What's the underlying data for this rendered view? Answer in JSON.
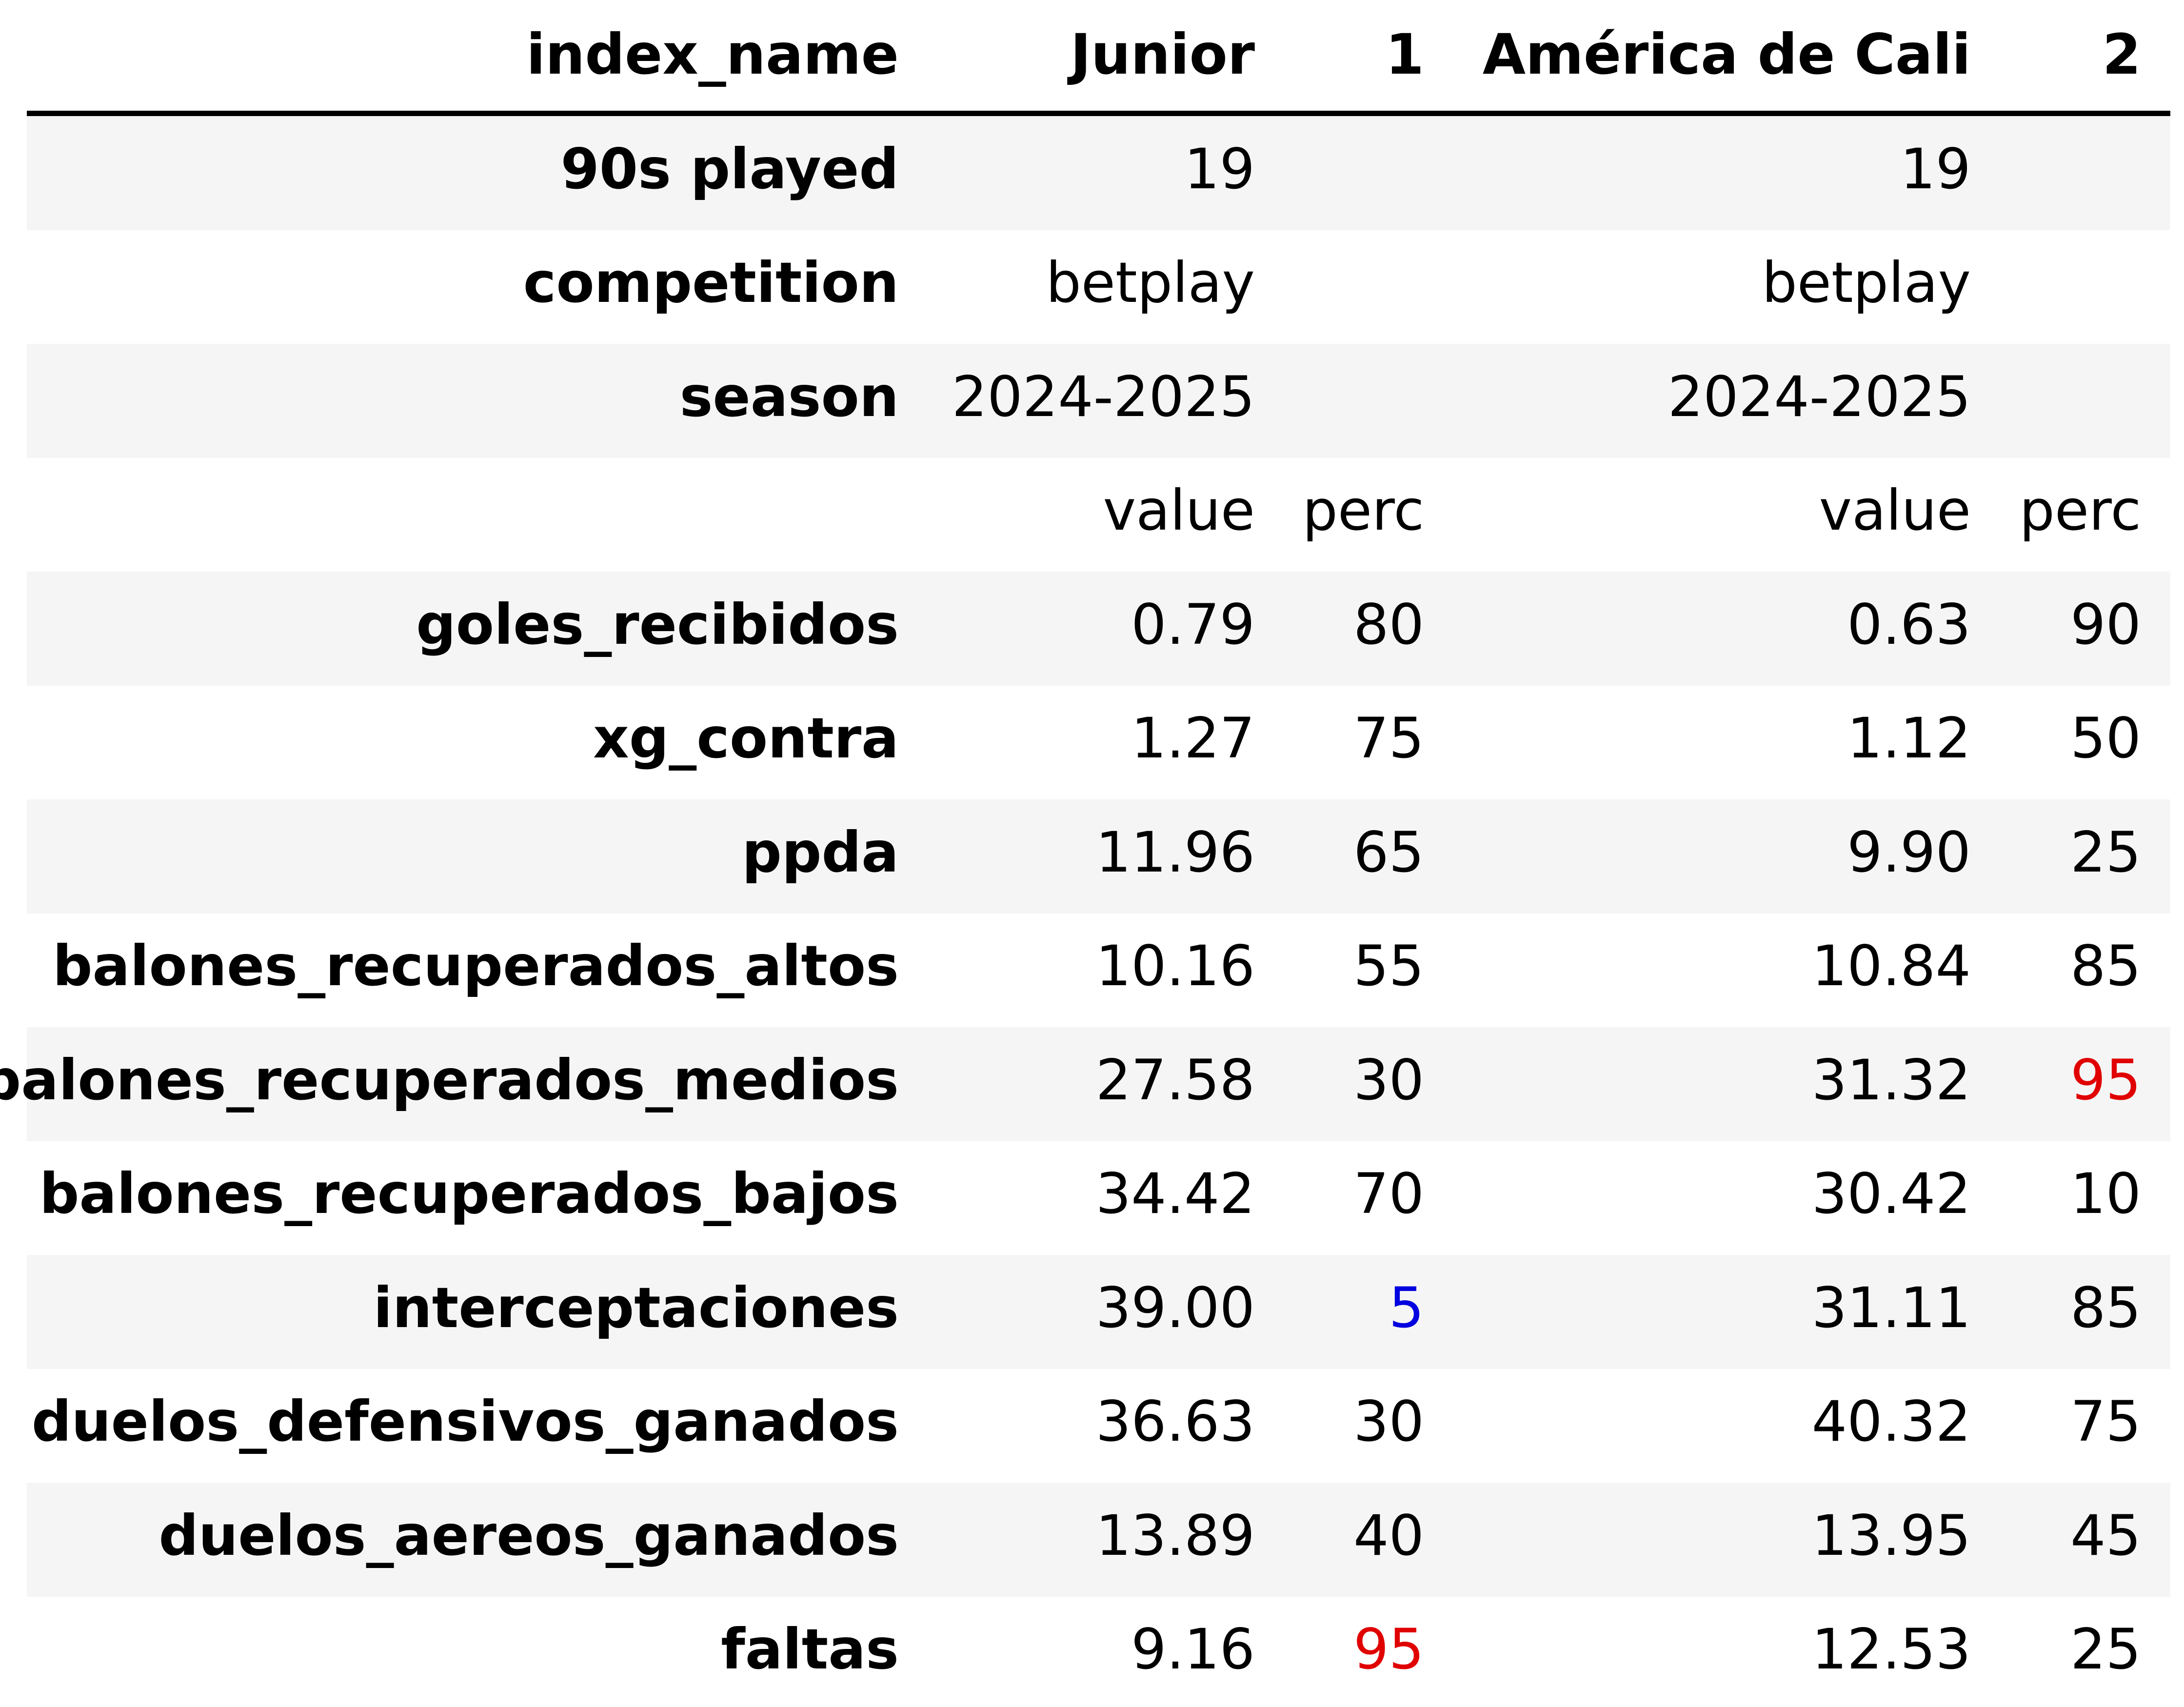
{
  "table": {
    "header": {
      "index_label": "index_name",
      "team1_name": "Junior",
      "team1_number": "1",
      "team2_name": "América de Cali",
      "team2_number": "2"
    },
    "meta_rows": [
      {
        "label": "90s played",
        "team1": "19",
        "team2": "19"
      },
      {
        "label": "competition",
        "team1": "betplay",
        "team2": "betplay"
      },
      {
        "label": "season",
        "team1": "2024-2025",
        "team2": "2024-2025"
      }
    ],
    "subheader": {
      "team1_value": "value",
      "team1_perc": "perc",
      "team2_value": "value",
      "team2_perc": "perc"
    },
    "stat_rows": [
      {
        "label": "goles_recibidos",
        "team1_value": "0.79",
        "team1_perc": "80",
        "team2_value": "0.63",
        "team2_perc": "90"
      },
      {
        "label": "xg_contra",
        "team1_value": "1.27",
        "team1_perc": "75",
        "team2_value": "1.12",
        "team2_perc": "50"
      },
      {
        "label": "ppda",
        "team1_value": "11.96",
        "team1_perc": "65",
        "team2_value": "9.90",
        "team2_perc": "25"
      },
      {
        "label": "balones_recuperados_altos",
        "team1_value": "10.16",
        "team1_perc": "55",
        "team2_value": "10.84",
        "team2_perc": "85"
      },
      {
        "label": "balones_recuperados_medios",
        "team1_value": "27.58",
        "team1_perc": "30",
        "team2_value": "31.32",
        "team2_perc": "95",
        "team2_perc_color": "#e00000"
      },
      {
        "label": "balones_recuperados_bajos",
        "team1_value": "34.42",
        "team1_perc": "70",
        "team2_value": "30.42",
        "team2_perc": "10"
      },
      {
        "label": "interceptaciones",
        "team1_value": "39.00",
        "team1_perc": "5",
        "team1_perc_color": "#0000e0",
        "team2_value": "31.11",
        "team2_perc": "85"
      },
      {
        "label": "duelos_defensivos_ganados",
        "team1_value": "36.63",
        "team1_perc": "30",
        "team2_value": "40.32",
        "team2_perc": "75"
      },
      {
        "label": "duelos_aereos_ganados",
        "team1_value": "13.89",
        "team1_perc": "40",
        "team2_value": "13.95",
        "team2_perc": "45"
      },
      {
        "label": "faltas",
        "team1_value": "9.16",
        "team1_perc": "95",
        "team1_perc_color": "#e00000",
        "team2_value": "12.53",
        "team2_perc": "25"
      }
    ]
  }
}
